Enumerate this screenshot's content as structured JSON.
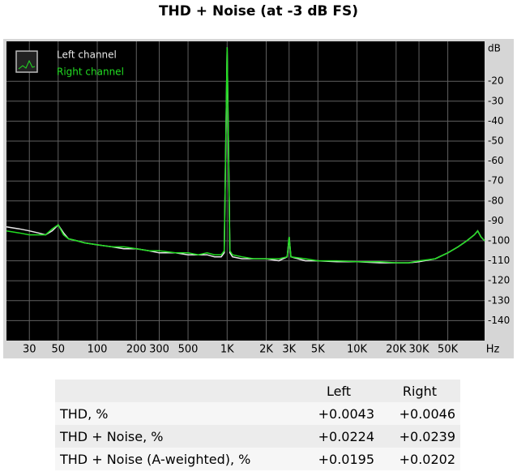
{
  "chart_data": {
    "type": "line",
    "title": "THD + Noise (at -3 dB FS)",
    "y_label": "dB",
    "x_label": "Hz",
    "x": [
      20,
      25,
      30,
      35,
      40,
      45,
      50,
      55,
      60,
      70,
      80,
      100,
      130,
      160,
      200,
      250,
      300,
      400,
      500,
      600,
      700,
      800,
      900,
      950,
      1000,
      1050,
      1100,
      1300,
      1600,
      2000,
      2500,
      2900,
      3000,
      3100,
      4000,
      5000,
      7000,
      10000,
      15000,
      20000,
      25000,
      30000,
      40000,
      50000,
      60000,
      70000,
      80000,
      85000,
      90000,
      96000
    ],
    "series": [
      {
        "name": "Left channel",
        "color": "#e8e8e8",
        "values": [
          -93,
          -94,
          -95,
          -96,
          -97,
          -95,
          -92,
          -96,
          -99,
          -100,
          -101,
          -102,
          -103,
          -104,
          -104,
          -105,
          -106,
          -106,
          -107,
          -107,
          -107,
          -108,
          -108,
          -106,
          -3,
          -106,
          -108,
          -109,
          -109,
          -109,
          -110,
          -108,
          -98,
          -108,
          -110,
          -110,
          -110.5,
          -110.5,
          -111,
          -111,
          -111,
          -110.5,
          -109,
          -106,
          -103,
          -100,
          -97,
          -95,
          -98,
          -100
        ]
      },
      {
        "name": "Right channel",
        "color": "#22dd22",
        "values": [
          -95,
          -96,
          -97,
          -97,
          -97,
          -94,
          -92,
          -97,
          -99,
          -100,
          -101,
          -102,
          -103,
          -103,
          -104,
          -105,
          -105,
          -106,
          -106,
          -107,
          -106,
          -107,
          -107,
          -105,
          -3,
          -105,
          -107,
          -108,
          -109,
          -109,
          -109,
          -108,
          -98,
          -108,
          -109,
          -110,
          -110,
          -110.5,
          -110.5,
          -111,
          -111,
          -110,
          -109,
          -106,
          -103,
          -100,
          -97,
          -95,
          -98,
          -100
        ]
      }
    ],
    "log_x": true,
    "xlim": [
      20,
      96000
    ],
    "ylim": [
      -150,
      0
    ],
    "xticks": [
      30,
      50,
      100,
      200,
      300,
      500,
      {
        "value": 1000,
        "label": "1K"
      },
      {
        "value": 2000,
        "label": "2K"
      },
      {
        "value": 3000,
        "label": "3K"
      },
      {
        "value": 5000,
        "label": "5K"
      },
      {
        "value": 10000,
        "label": "10K"
      },
      {
        "value": 20000,
        "label": "20K"
      },
      {
        "value": 30000,
        "label": "30K"
      },
      {
        "value": 50000,
        "label": "50K"
      }
    ],
    "yticks": [
      -20,
      -30,
      -40,
      -50,
      -60,
      -70,
      -80,
      -90,
      -100,
      -110,
      -120,
      -130,
      -140
    ],
    "grid": true,
    "legend": "top-left",
    "background": "#000000"
  },
  "table": {
    "header": [
      "Left",
      "Right"
    ],
    "rows": [
      {
        "label": "THD, %",
        "values": [
          "+0.0043",
          "+0.0046"
        ]
      },
      {
        "label": "THD + Noise, %",
        "values": [
          "+0.0224",
          "+0.0239"
        ]
      },
      {
        "label": "THD + Noise (A-weighted), %",
        "values": [
          "+0.0195",
          "+0.0202"
        ]
      }
    ]
  }
}
